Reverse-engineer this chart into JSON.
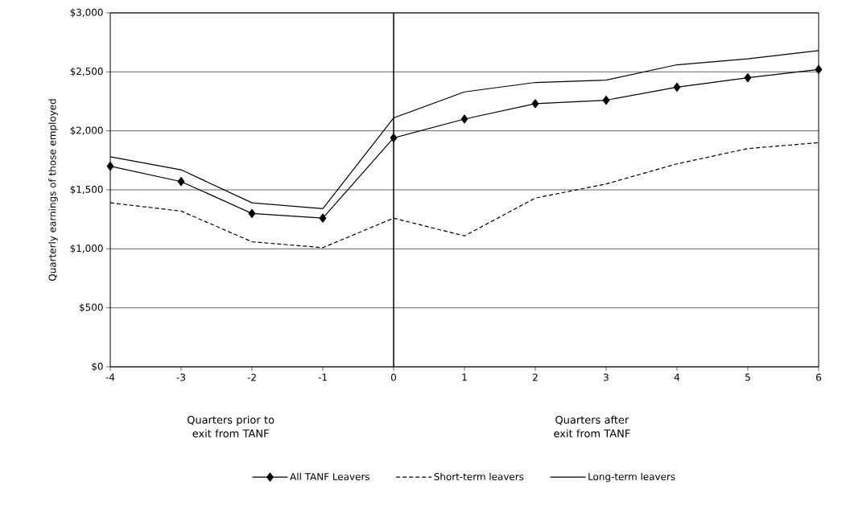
{
  "chart_data": {
    "type": "line",
    "ylabel": "Quarterly earnings of those employed",
    "x": [
      -4,
      -3,
      -2,
      -1,
      0,
      1,
      2,
      3,
      4,
      5,
      6
    ],
    "series": [
      {
        "name": "All TANF Leavers",
        "color": "#000000",
        "marker": "diamond",
        "line_style": "solid",
        "values": [
          1700,
          1570,
          1300,
          1260,
          1940,
          2100,
          2230,
          2260,
          2370,
          2450,
          2520
        ]
      },
      {
        "name": "Short-term leavers",
        "color": "#000000",
        "marker": "none",
        "line_style": "dashed",
        "values": [
          1390,
          1320,
          1060,
          1010,
          1260,
          1110,
          1430,
          1550,
          1720,
          1850,
          1900
        ]
      },
      {
        "name": "Long-term leavers",
        "color": "#000000",
        "marker": "none",
        "line_style": "solid",
        "values": [
          1780,
          1670,
          1390,
          1340,
          2110,
          2330,
          2410,
          2430,
          2560,
          2610,
          2680
        ]
      }
    ],
    "xlim": [
      -4,
      6
    ],
    "xticks": [
      -4,
      -3,
      -2,
      -1,
      0,
      1,
      2,
      3,
      4,
      5,
      6
    ],
    "ylim": [
      0,
      3000
    ],
    "yticks": [
      {
        "value": 0,
        "label": "$0"
      },
      {
        "value": 500,
        "label": "$500"
      },
      {
        "value": 1000,
        "label": "$1,000"
      },
      {
        "value": 1500,
        "label": "$1,500"
      },
      {
        "value": 2000,
        "label": "$2,000"
      },
      {
        "value": 2500,
        "label": "$2,500"
      },
      {
        "value": 3000,
        "label": "$3,000"
      }
    ],
    "ref_lines": [
      {
        "axis": "x",
        "value": 0
      }
    ],
    "annotations": [
      "Quarters prior to exit from TANF",
      "Quarters after exit from TANF"
    ],
    "grid": "y",
    "legend": "bottom"
  }
}
